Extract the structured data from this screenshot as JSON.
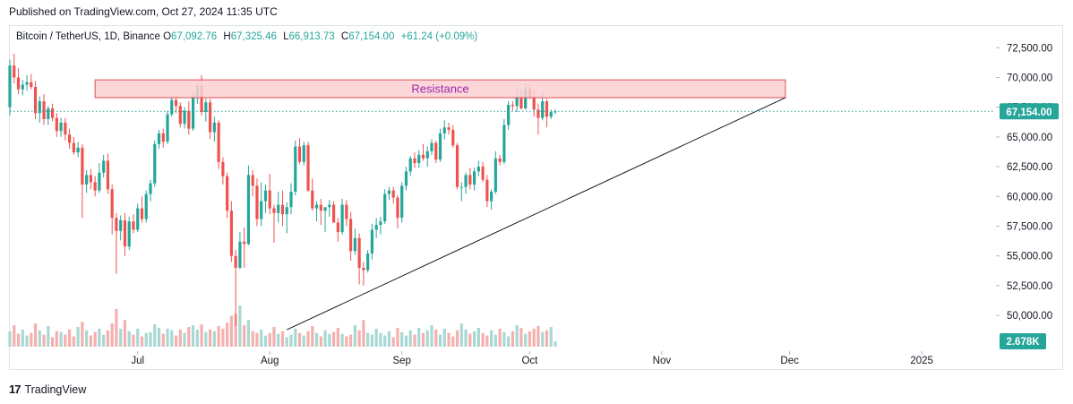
{
  "publish_note": "Published on TradingView.com, Oct 27, 2024 11:35 UTC",
  "legend": {
    "symbol": "Bitcoin / TetherUS, 1D, Binance",
    "o_key": "O",
    "o": "67,092.76",
    "h_key": "H",
    "h": "67,325.46",
    "l_key": "L",
    "l": "66,913.73",
    "c_key": "C",
    "c": "67,154.00",
    "change": "+61.24 (+0.09%)"
  },
  "price_badge": "67,154.00",
  "volume_badge": "2.678K",
  "footer": {
    "logo": "17",
    "brand": "TradingView"
  },
  "colors": {
    "up": "#26a69a",
    "down": "#ef5350",
    "vol_up": "#a8d8d3",
    "vol_down": "#f4b0ae",
    "resistance_fill": "#fbd0d2",
    "resistance_border": "#e24b56",
    "resistance_text": "#9c27b0",
    "price_line": "#26a69a"
  },
  "chart_data": {
    "type": "candlestick",
    "title": "Bitcoin / TetherUS, 1D, Binance",
    "ylim": [
      48500,
      73500
    ],
    "y_ticks": [
      50000,
      52500,
      55000,
      57500,
      60000,
      62500,
      65000,
      67500,
      70000,
      72500
    ],
    "y_tick_labels": [
      "50,000.00",
      "52,500.00",
      "55,000.00",
      "57,500.00",
      "60,000.00",
      "62,500.00",
      "65,000.00",
      "67,500.00",
      "70,000.00",
      "72,500.00"
    ],
    "x_ticks": [
      {
        "date": "2024-07-01",
        "label": "Jul"
      },
      {
        "date": "2024-08-01",
        "label": "Aug"
      },
      {
        "date": "2024-09-01",
        "label": "Sep"
      },
      {
        "date": "2024-10-01",
        "label": "Oct"
      },
      {
        "date": "2024-11-01",
        "label": "Nov"
      },
      {
        "date": "2024-12-01",
        "label": "Dec"
      },
      {
        "date": "2025-01-01",
        "label": "2025"
      }
    ],
    "x_start_date": "2024-06-01",
    "x_end_date": "2025-01-18",
    "start_date": "2024-06-01",
    "candles": [
      [
        67500,
        71500,
        66800,
        71000
      ],
      [
        71000,
        72000,
        69500,
        70000
      ],
      [
        70000,
        70800,
        68600,
        69000
      ],
      [
        69000,
        69800,
        68500,
        69400
      ],
      [
        69400,
        70200,
        68900,
        69600
      ],
      [
        69600,
        70300,
        69000,
        69200
      ],
      [
        69200,
        69700,
        66500,
        67000
      ],
      [
        67000,
        68400,
        66200,
        68000
      ],
      [
        68000,
        68600,
        66000,
        66500
      ],
      [
        66500,
        67600,
        66000,
        67400
      ],
      [
        67400,
        67800,
        66300,
        66600
      ],
      [
        66600,
        67000,
        65000,
        65500
      ],
      [
        65500,
        66600,
        65000,
        66200
      ],
      [
        66200,
        66600,
        64700,
        65200
      ],
      [
        65200,
        65700,
        64000,
        64500
      ],
      [
        64500,
        65000,
        63500,
        63700
      ],
      [
        63700,
        64600,
        63300,
        64100
      ],
      [
        64100,
        64400,
        58200,
        61000
      ],
      [
        61000,
        62200,
        60300,
        61800
      ],
      [
        61800,
        62300,
        60600,
        61200
      ],
      [
        61200,
        61700,
        60000,
        60500
      ],
      [
        60500,
        62800,
        60300,
        62000
      ],
      [
        62000,
        63500,
        61600,
        63000
      ],
      [
        63000,
        63600,
        60200,
        60600
      ],
      [
        60600,
        61000,
        56800,
        58200
      ],
      [
        58200,
        58600,
        53500,
        57100
      ],
      [
        57100,
        58400,
        56300,
        58000
      ],
      [
        58000,
        58600,
        55000,
        55800
      ],
      [
        55800,
        58300,
        55500,
        57900
      ],
      [
        57900,
        58500,
        56900,
        57200
      ],
      [
        57200,
        59400,
        57000,
        59000
      ],
      [
        59000,
        60000,
        57800,
        58100
      ],
      [
        58100,
        60500,
        57800,
        60200
      ],
      [
        60200,
        61400,
        59600,
        61100
      ],
      [
        61100,
        64700,
        60800,
        64400
      ],
      [
        64400,
        65600,
        64000,
        65300
      ],
      [
        65300,
        65700,
        64100,
        64600
      ],
      [
        64600,
        67200,
        64400,
        66900
      ],
      [
        66900,
        68300,
        66700,
        68100
      ],
      [
        68100,
        68700,
        67000,
        67600
      ],
      [
        67600,
        67900,
        65800,
        66100
      ],
      [
        66100,
        67500,
        65700,
        67200
      ],
      [
        67200,
        68000,
        65200,
        65700
      ],
      [
        65700,
        68700,
        65500,
        68400
      ],
      [
        68400,
        69600,
        67800,
        69300
      ],
      [
        69300,
        70200,
        66800,
        67100
      ],
      [
        67100,
        68200,
        66300,
        67900
      ],
      [
        67900,
        68200,
        64800,
        65400
      ],
      [
        65400,
        66700,
        64600,
        66200
      ],
      [
        66200,
        66400,
        62300,
        62900
      ],
      [
        62900,
        63300,
        61000,
        61700
      ],
      [
        61700,
        62000,
        58200,
        58800
      ],
      [
        58800,
        59600,
        54500,
        55000
      ],
      [
        55000,
        55500,
        49100,
        54000
      ],
      [
        54000,
        57000,
        53900,
        56200
      ],
      [
        56200,
        57400,
        54000,
        56000
      ],
      [
        56000,
        62600,
        55900,
        61800
      ],
      [
        61800,
        62200,
        60000,
        60900
      ],
      [
        60900,
        61500,
        57500,
        58100
      ],
      [
        58100,
        61200,
        57500,
        59600
      ],
      [
        59600,
        61000,
        58600,
        60500
      ],
      [
        60500,
        61900,
        58500,
        59000
      ],
      [
        59000,
        59300,
        56100,
        58600
      ],
      [
        58600,
        60400,
        57800,
        59300
      ],
      [
        59300,
        60500,
        57500,
        58500
      ],
      [
        58500,
        59500,
        56900,
        59100
      ],
      [
        59100,
        61100,
        58500,
        60400
      ],
      [
        60400,
        64700,
        60100,
        64200
      ],
      [
        64200,
        64900,
        62700,
        62900
      ],
      [
        62900,
        64600,
        62600,
        64300
      ],
      [
        64300,
        64600,
        60400,
        60500
      ],
      [
        60500,
        61500,
        58800,
        59000
      ],
      [
        59000,
        59600,
        57900,
        59300
      ],
      [
        59300,
        59800,
        57600,
        58800
      ],
      [
        58800,
        59000,
        57000,
        59100
      ],
      [
        59100,
        59700,
        58300,
        59300
      ],
      [
        59300,
        59600,
        57900,
        57800
      ],
      [
        57800,
        58200,
        56200,
        57000
      ],
      [
        57000,
        59800,
        56800,
        59300
      ],
      [
        59300,
        59700,
        57500,
        58100
      ],
      [
        58100,
        58700,
        54600,
        55400
      ],
      [
        55400,
        57300,
        55100,
        56500
      ],
      [
        56500,
        56900,
        52600,
        54000
      ],
      [
        54000,
        54500,
        52500,
        53800
      ],
      [
        53800,
        55500,
        53600,
        55200
      ],
      [
        55200,
        57700,
        54700,
        57200
      ],
      [
        57200,
        58200,
        56500,
        57600
      ],
      [
        57600,
        58300,
        56800,
        57900
      ],
      [
        57900,
        60600,
        57700,
        60200
      ],
      [
        60200,
        60800,
        59700,
        60500
      ],
      [
        60500,
        60800,
        59400,
        59900
      ],
      [
        59900,
        60100,
        57300,
        58200
      ],
      [
        58200,
        61200,
        57800,
        60900
      ],
      [
        60900,
        62500,
        60500,
        62100
      ],
      [
        62100,
        63400,
        61700,
        63200
      ],
      [
        63200,
        63700,
        62400,
        62800
      ],
      [
        62800,
        63900,
        62400,
        63500
      ],
      [
        63500,
        64400,
        63000,
        63200
      ],
      [
        63200,
        64200,
        62500,
        63800
      ],
      [
        63800,
        64800,
        63500,
        64500
      ],
      [
        64500,
        64700,
        62800,
        63100
      ],
      [
        63100,
        65700,
        62900,
        65300
      ],
      [
        65300,
        66400,
        64800,
        65800
      ],
      [
        65800,
        66200,
        65200,
        65600
      ],
      [
        65600,
        66000,
        64100,
        64300
      ],
      [
        64300,
        64500,
        60600,
        60800
      ],
      [
        60800,
        61200,
        59600,
        60800
      ],
      [
        60800,
        62000,
        60200,
        61800
      ],
      [
        61800,
        62400,
        60600,
        61000
      ],
      [
        61000,
        62400,
        60500,
        62100
      ],
      [
        62100,
        63000,
        61700,
        62500
      ],
      [
        62500,
        62900,
        61200,
        61400
      ],
      [
        61400,
        61800,
        59100,
        59600
      ],
      [
        59600,
        60600,
        58900,
        60400
      ],
      [
        60400,
        63800,
        60200,
        63200
      ],
      [
        63200,
        63500,
        62600,
        62900
      ],
      [
        62900,
        66500,
        62700,
        66000
      ],
      [
        66000,
        68000,
        65600,
        67700
      ],
      [
        67700,
        68000,
        67200,
        67600
      ],
      [
        67600,
        69000,
        67100,
        68400
      ],
      [
        68400,
        68900,
        67300,
        67400
      ],
      [
        67400,
        69500,
        67300,
        69000
      ],
      [
        69000,
        69400,
        68200,
        68300
      ],
      [
        68300,
        69000,
        66700,
        67300
      ],
      [
        67300,
        67800,
        65200,
        66600
      ],
      [
        66600,
        68900,
        66400,
        68000
      ],
      [
        68000,
        68200,
        65800,
        66700
      ],
      [
        66700,
        67300,
        66500,
        67092
      ],
      [
        67092,
        67325,
        66913,
        67154
      ]
    ],
    "volumes_k": [
      9.0,
      12.5,
      7.5,
      10.0,
      6.5,
      8.0,
      13.5,
      9.5,
      7.0,
      12.0,
      5.5,
      9.0,
      8.5,
      7.0,
      10.0,
      6.0,
      11.5,
      14.5,
      9.5,
      6.5,
      8.5,
      10.5,
      7.0,
      9.5,
      13.5,
      22.0,
      10.5,
      15.5,
      9.0,
      7.0,
      10.5,
      6.0,
      8.0,
      8.5,
      13.0,
      11.0,
      7.5,
      10.5,
      9.5,
      6.5,
      10.0,
      8.0,
      11.5,
      12.5,
      10.0,
      13.0,
      8.5,
      10.0,
      9.0,
      12.0,
      10.5,
      14.0,
      18.0,
      19.0,
      24.0,
      12.5,
      15.5,
      9.0,
      8.0,
      10.0,
      6.5,
      8.0,
      11.5,
      7.5,
      9.0,
      5.5,
      7.0,
      10.5,
      8.0,
      6.5,
      9.0,
      12.0,
      8.0,
      6.0,
      9.5,
      7.5,
      8.5,
      11.0,
      7.5,
      6.0,
      7.0,
      12.5,
      9.5,
      15.5,
      8.0,
      7.0,
      10.5,
      8.0,
      6.5,
      9.0,
      5.5,
      11.0,
      8.5,
      6.5,
      9.5,
      7.0,
      11.0,
      8.0,
      9.5,
      12.5,
      10.0,
      7.0,
      10.5,
      8.0,
      6.0,
      9.5,
      13.5,
      10.0,
      7.5,
      9.0,
      11.0,
      8.0,
      6.5,
      9.5,
      7.0,
      10.5,
      8.5,
      6.0,
      9.0,
      12.5,
      11.0,
      7.5,
      9.0,
      10.5,
      12.0,
      8.5,
      9.5,
      11.5,
      3.0
    ],
    "annotations": [
      {
        "type": "rectangle",
        "label": "Resistance",
        "y_low": 68300,
        "y_high": 69800,
        "x_start_date": "2024-06-21",
        "x_end_date": "2024-11-30"
      },
      {
        "type": "trendline",
        "label": "",
        "start_date": "2024-08-05",
        "start_price": 48800,
        "end_date": "2024-11-30",
        "end_price": 68300
      }
    ],
    "last_price": 67154,
    "grid": false,
    "legend_position": "top-left"
  }
}
